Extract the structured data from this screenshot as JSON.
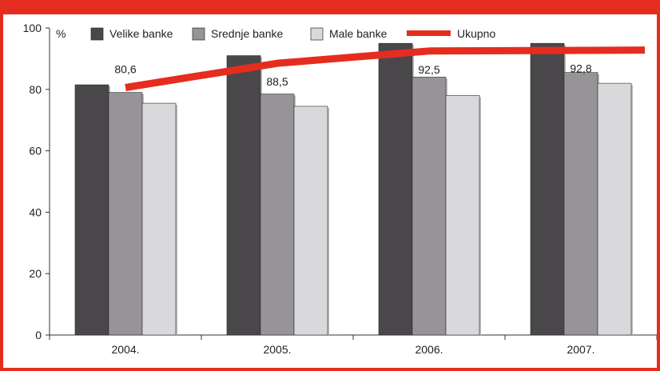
{
  "chart_data": {
    "type": "bar",
    "unit_label": "%",
    "categories": [
      "2004.",
      "2005.",
      "2006.",
      "2007."
    ],
    "ylim": [
      0,
      100
    ],
    "yticks": [
      0,
      20,
      40,
      60,
      80,
      100
    ],
    "series": [
      {
        "name": "Velike banke",
        "type": "bar",
        "color": "#4a474b",
        "values": [
          81.5,
          91,
          95,
          95
        ]
      },
      {
        "name": "Srednje banke",
        "type": "bar",
        "color": "#969496",
        "values": [
          79,
          78.5,
          84,
          85.5
        ]
      },
      {
        "name": "Male banke",
        "type": "bar",
        "color": "#d9d9db",
        "values": [
          75.5,
          74.5,
          78,
          82
        ]
      },
      {
        "name": "Ukupno",
        "type": "line",
        "color": "#e52d1f",
        "values": [
          80.6,
          88.5,
          92.5,
          92.8
        ],
        "data_labels": [
          "80,6",
          "88,5",
          "92,5",
          "92,8"
        ]
      }
    ],
    "grid": false,
    "legend": "top"
  }
}
